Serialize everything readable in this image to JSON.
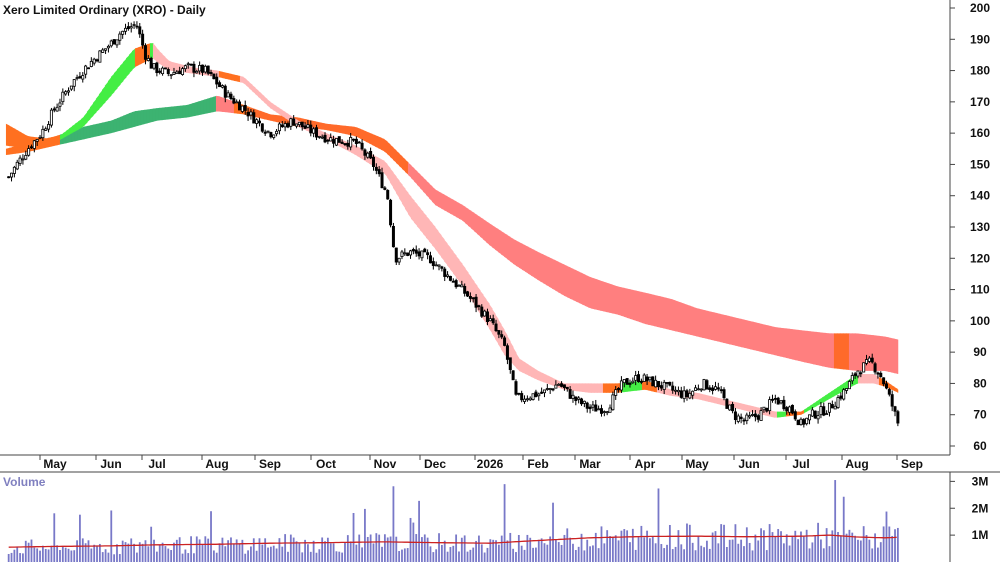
{
  "chart_data": [
    {
      "type": "candlestick",
      "title": "Xero Limited Ordinary (XRO) - Daily",
      "x_labels": [
        "May",
        "Jun",
        "Jul",
        "Aug",
        "Sep",
        "Oct",
        "Nov",
        "Dec",
        "2026",
        "Feb",
        "Mar",
        "Apr",
        "May",
        "Jun",
        "Jul",
        "Aug",
        "Sep"
      ],
      "y_ticks": [
        200,
        190,
        180,
        170,
        160,
        150,
        140,
        130,
        120,
        110,
        100,
        90,
        80,
        70,
        60
      ],
      "ylim": [
        55,
        202
      ],
      "price_path": {
        "x_month_index": [
          -0.85,
          -0.7,
          -0.5,
          -0.25,
          0.0,
          0.3,
          0.6,
          0.9,
          1.2,
          1.55,
          1.75,
          1.9,
          2.2,
          2.5,
          2.8,
          3.0,
          3.2,
          3.5,
          3.8,
          4.0,
          4.4,
          4.8,
          5.1,
          5.5,
          5.8,
          6.05,
          6.2,
          6.5,
          6.9,
          7.2,
          7.6,
          8.0,
          8.3,
          8.55,
          8.8,
          9.1,
          9.4,
          9.7,
          10.0,
          10.3,
          10.6,
          10.9,
          11.2,
          11.5,
          11.8,
          12.1,
          12.4,
          12.7,
          12.9,
          13.2,
          13.5,
          13.8,
          14.0,
          14.2,
          14.5,
          14.8,
          15.0,
          15.25,
          15.45,
          15.6,
          15.75
        ],
        "close": [
          146,
          150,
          155,
          160,
          168,
          176,
          182,
          187,
          192,
          195,
          185,
          181,
          179,
          181,
          180,
          176,
          172,
          168,
          163,
          160,
          164,
          160,
          158,
          157,
          150,
          140,
          120,
          122,
          120,
          115,
          108,
          100,
          92,
          75,
          76,
          77,
          80,
          75,
          72,
          72,
          80,
          82,
          80,
          78,
          76,
          80,
          78,
          70,
          68,
          70,
          75,
          72,
          67,
          70,
          72,
          78,
          84,
          87,
          82,
          75,
          67
        ]
      },
      "overlays": [
        {
          "name": "short-term ribbon",
          "x_month_index": [
            -0.9,
            -0.5,
            0.0,
            0.5,
            1.0,
            1.5,
            1.9,
            2.2,
            2.6,
            3.0,
            3.5,
            4.0,
            4.5,
            5.0,
            5.5,
            6.0,
            6.5,
            7.0,
            7.5,
            8.0,
            8.3,
            8.6,
            9.0,
            9.5,
            10.0,
            10.5,
            11.0,
            11.5,
            12.0,
            12.5,
            13.0,
            13.5,
            14.0,
            14.5,
            15.0,
            15.3,
            15.5,
            15.75
          ],
          "upper": [
            163,
            159,
            158,
            165,
            178,
            187,
            189,
            183,
            181,
            180,
            178,
            170,
            164,
            160,
            156,
            151,
            140,
            130,
            118,
            105,
            97,
            88,
            84,
            80,
            80,
            80,
            81,
            78,
            77,
            75,
            73,
            71,
            71,
            77,
            83,
            83,
            81,
            78
          ],
          "lower": [
            156,
            155,
            157,
            162,
            172,
            181,
            184,
            180,
            179,
            178,
            176,
            168,
            162,
            158,
            153,
            147,
            133,
            123,
            111,
            97,
            89,
            84,
            81,
            78,
            77,
            77,
            78,
            76,
            75,
            73,
            71,
            69,
            70,
            75,
            80,
            80,
            79,
            77
          ]
        },
        {
          "name": "long-term ribbon",
          "x_month_index": [
            -0.9,
            -0.5,
            0.0,
            0.5,
            1.0,
            1.5,
            2.0,
            2.5,
            3.0,
            3.5,
            4.0,
            4.5,
            5.0,
            5.5,
            6.0,
            6.5,
            7.0,
            7.5,
            8.0,
            8.5,
            9.0,
            9.5,
            10.0,
            10.5,
            11.0,
            11.5,
            12.0,
            12.5,
            13.0,
            13.5,
            14.0,
            14.5,
            15.0,
            15.5,
            15.75
          ],
          "upper": [
            155,
            157,
            159,
            162,
            164,
            167,
            168,
            169,
            172,
            169,
            166,
            165,
            163,
            162,
            158,
            150,
            142,
            137,
            131,
            126,
            122,
            118,
            114,
            111,
            109,
            107,
            104,
            102,
            100,
            98,
            97,
            96,
            96,
            95,
            94
          ],
          "lower": [
            153,
            154,
            156,
            158,
            160,
            162,
            164,
            165,
            167,
            166,
            164,
            162,
            161,
            159,
            154,
            146,
            137,
            132,
            124,
            118,
            113,
            108,
            104,
            102,
            99,
            97,
            95,
            93,
            91,
            89,
            87,
            85,
            84,
            84,
            83
          ]
        }
      ]
    },
    {
      "type": "bar",
      "title": "Volume",
      "x_labels": [
        "May",
        "Jun",
        "Jul",
        "Aug",
        "Sep",
        "Oct",
        "Nov",
        "Dec",
        "2026",
        "Feb",
        "Mar",
        "Apr",
        "May",
        "Jun",
        "Jul",
        "Aug",
        "Sep"
      ],
      "y_ticks": [
        "3M",
        "2M",
        "1M"
      ],
      "y_tick_values": [
        3000000,
        2000000,
        1000000
      ],
      "ylim": [
        0,
        3200000
      ],
      "volume_ma": {
        "x_month_index": [
          -0.9,
          0.0,
          1.0,
          2.0,
          3.0,
          4.0,
          5.0,
          6.0,
          7.0,
          8.0,
          9.0,
          10.0,
          11.0,
          12.0,
          13.0,
          14.0,
          14.5,
          15.0,
          15.5,
          15.75
        ],
        "values": [
          550000,
          580000,
          600000,
          640000,
          660000,
          700000,
          720000,
          750000,
          720000,
          700000,
          800000,
          900000,
          950000,
          960000,
          940000,
          960000,
          1000000,
          930000,
          900000,
          920000
        ]
      }
    }
  ]
}
